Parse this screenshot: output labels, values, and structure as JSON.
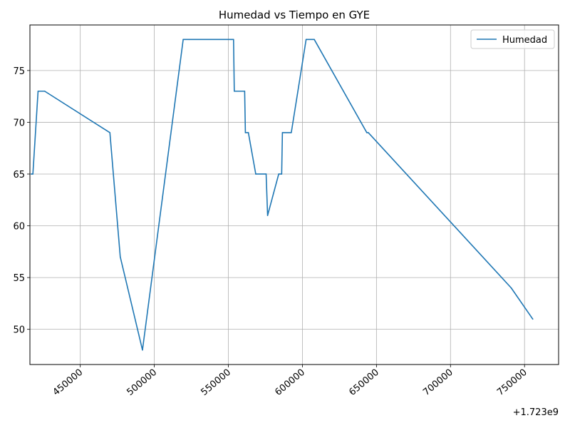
{
  "chart_data": {
    "type": "line",
    "title": "Humedad vs Tiempo en GYE",
    "xlabel": "",
    "ylabel": "",
    "x_offset_label": "+1.723e9",
    "x_ticks": [
      450000,
      500000,
      550000,
      600000,
      650000,
      700000,
      750000
    ],
    "x_tick_labels": [
      "450000",
      "500000",
      "550000",
      "600000",
      "650000",
      "700000",
      "750000"
    ],
    "y_ticks": [
      50,
      55,
      60,
      65,
      70,
      75
    ],
    "y_tick_labels": [
      "50",
      "55",
      "60",
      "65",
      "70",
      "75"
    ],
    "xlim": [
      416000,
      773000
    ],
    "ylim": [
      46.6,
      79.4
    ],
    "grid": true,
    "legend_position": "top-right",
    "series": [
      {
        "name": "Humedad",
        "color": "#1f77b4",
        "x": [
          417000,
          418000,
          421500,
          426000,
          470000,
          477000,
          492000,
          519500,
          523500,
          552000,
          553500,
          554000,
          561000,
          561500,
          563500,
          568500,
          575500,
          576500,
          584000,
          586000,
          586500,
          592500,
          602500,
          608000,
          643500,
          644500,
          741000,
          755500
        ],
        "y": [
          65,
          65,
          73,
          73,
          69,
          57,
          48,
          78,
          78,
          78,
          78,
          73,
          73,
          69,
          69,
          65,
          65,
          61,
          65,
          65,
          69,
          69,
          78,
          78,
          69,
          69,
          54,
          51
        ]
      }
    ]
  }
}
